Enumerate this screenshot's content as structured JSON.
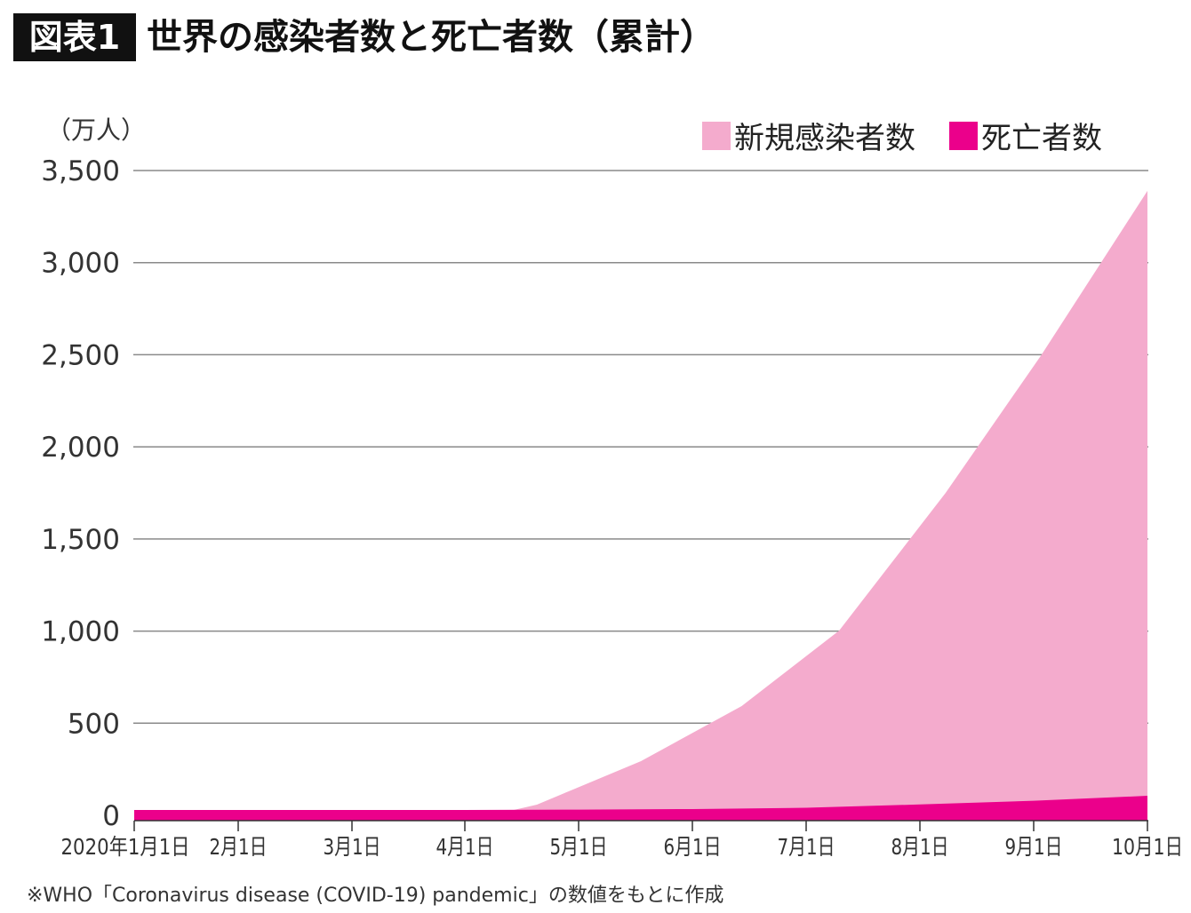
{
  "figure_tag": "図表1",
  "title": "世界の感染者数と死亡者数（累計）",
  "footnote": "※WHO「Coronavirus disease (COVID-19) pandemic」の数値をもとに作成",
  "chart_data": {
    "type": "area",
    "unit_label": "（万人）",
    "ylim": [
      0,
      3500
    ],
    "yticks": [
      0,
      500,
      1000,
      1500,
      2000,
      2500,
      3000,
      3500
    ],
    "ytick_labels": [
      "0",
      "500",
      "1,000",
      "1,500",
      "2,000",
      "2,500",
      "3,000",
      "3,500"
    ],
    "xticks": [
      "2020-01-01",
      "2020-02-01",
      "2020-03-01",
      "2020-04-01",
      "2020-05-01",
      "2020-06-01",
      "2020-07-01",
      "2020-08-01",
      "2020-09-01",
      "2020-10-01"
    ],
    "xtick_labels": [
      "2020年1月1日",
      "2月1日",
      "3月1日",
      "4月1日",
      "5月1日",
      "6月1日",
      "7月1日",
      "8月1日",
      "9月1日",
      "10月1日"
    ],
    "grid": true,
    "legend_position": "top-right",
    "series": [
      {
        "name": "新規感染者数",
        "color": "#f4abcd",
        "x": [
          "2020-01-01",
          "2020-04-11",
          "2020-04-20",
          "2020-05-18",
          "2020-06-14",
          "2020-07-10",
          "2020-08-08",
          "2020-09-03",
          "2020-10-01"
        ],
        "values": [
          0,
          15,
          58,
          294,
          593,
          1003,
          1750,
          2498,
          3390
        ]
      },
      {
        "name": "死亡者数",
        "color": "#eb008b",
        "x": [
          "2020-01-01",
          "2020-04-01",
          "2020-05-01",
          "2020-06-01",
          "2020-07-01",
          "2020-08-01",
          "2020-09-01",
          "2020-10-01"
        ],
        "values": [
          0,
          0,
          2,
          5,
          12,
          30,
          50,
          77
        ]
      }
    ]
  }
}
